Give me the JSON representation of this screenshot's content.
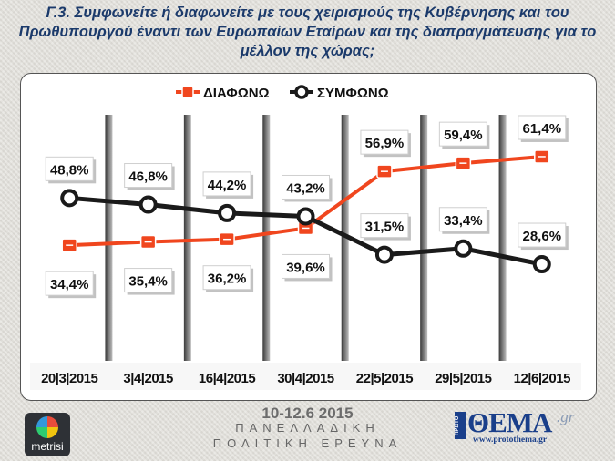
{
  "header": {
    "title_line1": "Γ.3. Συμφωνείτε ή διαφωνείτε με τους χειρισμούς της Κυβέρνησης και του",
    "title_line2": "Πρωθυπουργού έναντι των Ευρωπαίων Εταίρων και της διαπραγμάτευσης για το",
    "title_line3": "μέλλον της χώρας;"
  },
  "chart_data": {
    "type": "line",
    "categories": [
      "20|3|2015",
      "3|4|2015",
      "16|4|2015",
      "30|4|2015",
      "22|5|2015",
      "29|5|2015",
      "12|6|2015"
    ],
    "series": [
      {
        "name": "ΔΙΑΦΩΝΩ",
        "color": "#f0461e",
        "values": [
          34.4,
          35.4,
          36.2,
          39.6,
          56.9,
          59.4,
          61.4
        ],
        "labels": [
          "34,4%",
          "35,4%",
          "36,2%",
          "39,6%",
          "56,9%",
          "59,4%",
          "61,4%"
        ]
      },
      {
        "name": "ΣΥΜΦΩΝΩ",
        "color": "#1a1a1a",
        "values": [
          48.8,
          46.8,
          44.2,
          43.2,
          31.5,
          33.4,
          28.6
        ],
        "labels": [
          "48,8%",
          "46,8%",
          "44,2%",
          "43,2%",
          "31,5%",
          "33,4%",
          "28,6%"
        ]
      }
    ],
    "legend_position": "top-left",
    "ylim": [
      20,
      70
    ],
    "ylabel": "",
    "xlabel": ""
  },
  "footer": {
    "date": "10-12.6 2015",
    "line1": "ΠΑΝΕΛΛΑΔΙΚΗ",
    "line2": "ΠΟΛΙΤΙΚΗ ΕΡΕΥΝΑ",
    "logo_left": "metrisi",
    "brand_prefix": "ΠΡΩΤΟ",
    "brand_main": "ΘΕΜΑ",
    "brand_suffix": ".gr",
    "brand_url": "www.protothema.gr"
  }
}
